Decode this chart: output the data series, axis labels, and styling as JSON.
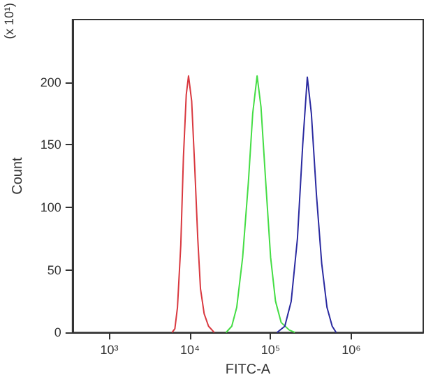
{
  "chart_data": {
    "type": "line",
    "xlabel": "FITC-A",
    "ylabel": "Count",
    "annotations": [
      "(x 10¹)"
    ],
    "log": "x",
    "marker": "none",
    "line_style": "solid",
    "xlim": [
      350,
      7800000
    ],
    "xticks": [
      {
        "value": 1000,
        "label": "10³"
      },
      {
        "value": 10000,
        "label": "10⁴"
      },
      {
        "value": 100000,
        "label": "10⁵"
      },
      {
        "value": 1000000,
        "label": "10⁶"
      }
    ],
    "ylim": [
      0,
      250
    ],
    "yticks": [
      0,
      50,
      100,
      150,
      200
    ],
    "series": [
      {
        "color": "#d9383f",
        "x": [
          6000,
          6500,
          7000,
          7700,
          8300,
          9000,
          9600,
          10500,
          11500,
          12500,
          13500,
          15000,
          17000,
          20000
        ],
        "values": [
          0,
          3,
          20,
          70,
          140,
          190,
          205,
          185,
          130,
          75,
          35,
          15,
          5,
          0
        ]
      },
      {
        "color": "#44dd44",
        "x": [
          28000,
          33000,
          38000,
          45000,
          53000,
          60000,
          68000,
          76000,
          87000,
          100000,
          115000,
          135000,
          170000,
          200000
        ],
        "values": [
          0,
          5,
          20,
          60,
          120,
          175,
          205,
          180,
          120,
          60,
          25,
          8,
          2,
          0
        ]
      },
      {
        "color": "#2a2aa0",
        "x": [
          120000,
          150000,
          180000,
          215000,
          250000,
          285000,
          320000,
          370000,
          430000,
          500000,
          580000,
          650000
        ],
        "values": [
          0,
          5,
          25,
          75,
          150,
          204,
          175,
          110,
          55,
          20,
          5,
          0
        ]
      }
    ]
  }
}
